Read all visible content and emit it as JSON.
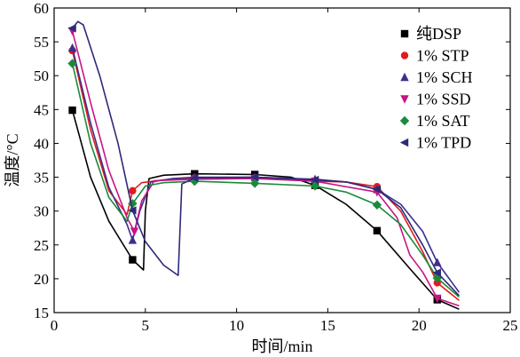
{
  "chart_data": {
    "type": "line",
    "title": "",
    "xlabel": "时间/min",
    "ylabel": "温度/°C",
    "xlim": [
      0,
      25
    ],
    "ylim": [
      15,
      60
    ],
    "xticks": [
      0,
      5,
      10,
      15,
      20,
      25
    ],
    "yticks": [
      15,
      20,
      25,
      30,
      35,
      40,
      45,
      50,
      55,
      60
    ],
    "grid": false,
    "legend_position": "top-right",
    "series": [
      {
        "name": "纯DSP",
        "color": "#000000",
        "marker": "square",
        "points": [
          [
            1.0,
            44.9
          ],
          [
            2.0,
            35.0
          ],
          [
            3.0,
            28.5
          ],
          [
            4.3,
            22.8
          ],
          [
            4.9,
            21.3
          ],
          [
            5.0,
            30.0
          ],
          [
            5.2,
            34.8
          ],
          [
            6.0,
            35.3
          ],
          [
            7.7,
            35.5
          ],
          [
            11.0,
            35.4
          ],
          [
            13.0,
            35.0
          ],
          [
            14.3,
            33.8
          ],
          [
            16.0,
            31.0
          ],
          [
            17.7,
            27.1
          ],
          [
            19.5,
            21.5
          ],
          [
            21.0,
            16.9
          ],
          [
            22.2,
            15.5
          ]
        ],
        "markers_x": [
          1.0,
          4.3,
          7.7,
          11.0,
          14.3,
          17.7,
          21.0
        ]
      },
      {
        "name": "1% STP",
        "color": "#e41a1c",
        "marker": "circle",
        "points": [
          [
            1.0,
            53.7
          ],
          [
            2.0,
            42.0
          ],
          [
            3.0,
            33.0
          ],
          [
            4.0,
            29.5
          ],
          [
            4.3,
            33.0
          ],
          [
            4.8,
            34.2
          ],
          [
            6.0,
            34.6
          ],
          [
            7.7,
            34.9
          ],
          [
            11.0,
            34.9
          ],
          [
            14.3,
            34.4
          ],
          [
            16.0,
            34.3
          ],
          [
            17.7,
            33.6
          ],
          [
            19.0,
            30.0
          ],
          [
            20.2,
            24.0
          ],
          [
            21.0,
            19.4
          ],
          [
            22.2,
            16.8
          ]
        ],
        "markers_x": [
          1.0,
          4.3,
          7.7,
          11.0,
          14.3,
          17.7,
          21.0
        ]
      },
      {
        "name": "1% SCH",
        "color": "#3b2f8f",
        "marker": "triangle-up",
        "points": [
          [
            1.0,
            54.1
          ],
          [
            2.0,
            43.0
          ],
          [
            3.0,
            33.5
          ],
          [
            4.0,
            28.0
          ],
          [
            4.3,
            25.7
          ],
          [
            4.7,
            30.0
          ],
          [
            5.3,
            34.3
          ],
          [
            6.5,
            34.8
          ],
          [
            7.7,
            35.0
          ],
          [
            11.0,
            35.0
          ],
          [
            14.3,
            34.7
          ],
          [
            16.0,
            34.3
          ],
          [
            17.7,
            33.2
          ],
          [
            19.0,
            31.0
          ],
          [
            20.2,
            27.0
          ],
          [
            21.0,
            22.4
          ],
          [
            22.2,
            18.0
          ]
        ],
        "markers_x": [
          1.0,
          4.3,
          7.7,
          11.0,
          14.3,
          17.7,
          21.0
        ]
      },
      {
        "name": "1% SSD",
        "color": "#c71585",
        "marker": "triangle-down",
        "points": [
          [
            1.0,
            56.6
          ],
          [
            2.0,
            46.0
          ],
          [
            3.0,
            36.0
          ],
          [
            4.0,
            29.0
          ],
          [
            4.4,
            27.0
          ],
          [
            4.8,
            31.5
          ],
          [
            5.5,
            34.5
          ],
          [
            7.7,
            34.7
          ],
          [
            11.0,
            34.8
          ],
          [
            14.3,
            34.4
          ],
          [
            17.7,
            32.8
          ],
          [
            18.8,
            29.0
          ],
          [
            19.5,
            23.5
          ],
          [
            20.2,
            21.0
          ],
          [
            21.0,
            17.1
          ],
          [
            22.2,
            16.0
          ]
        ],
        "markers_x": [
          1.0,
          4.4,
          7.7,
          11.0,
          14.3,
          17.7,
          21.0
        ]
      },
      {
        "name": "1% SAT",
        "color": "#1a8a3a",
        "marker": "diamond",
        "points": [
          [
            1.0,
            51.8
          ],
          [
            2.0,
            40.0
          ],
          [
            3.0,
            32.0
          ],
          [
            4.0,
            28.5
          ],
          [
            4.3,
            31.1
          ],
          [
            5.0,
            33.7
          ],
          [
            6.0,
            34.2
          ],
          [
            7.7,
            34.4
          ],
          [
            11.0,
            34.1
          ],
          [
            14.3,
            33.7
          ],
          [
            16.0,
            32.8
          ],
          [
            17.7,
            30.9
          ],
          [
            19.0,
            28.0
          ],
          [
            20.2,
            23.5
          ],
          [
            21.0,
            20.1
          ],
          [
            22.2,
            17.3
          ]
        ],
        "markers_x": [
          1.0,
          4.3,
          7.7,
          11.0,
          14.3,
          17.7,
          21.0
        ]
      },
      {
        "name": "1% TPD",
        "color": "#2c2a7a",
        "marker": "triangle-left",
        "points": [
          [
            1.0,
            57.0
          ],
          [
            1.3,
            58.0
          ],
          [
            1.6,
            57.5
          ],
          [
            2.5,
            50.0
          ],
          [
            3.5,
            40.0
          ],
          [
            4.3,
            30.1
          ],
          [
            5.0,
            25.5
          ],
          [
            6.0,
            22.0
          ],
          [
            6.8,
            20.5
          ],
          [
            7.0,
            34.0
          ],
          [
            7.7,
            34.9
          ],
          [
            11.0,
            35.0
          ],
          [
            14.3,
            34.6
          ],
          [
            16.0,
            34.3
          ],
          [
            17.7,
            33.2
          ],
          [
            19.0,
            30.5
          ],
          [
            20.2,
            25.0
          ],
          [
            21.0,
            20.9
          ],
          [
            22.2,
            17.5
          ]
        ],
        "markers_x": [
          1.0,
          4.3,
          7.7,
          11.0,
          14.3,
          17.7,
          21.0
        ]
      }
    ]
  }
}
